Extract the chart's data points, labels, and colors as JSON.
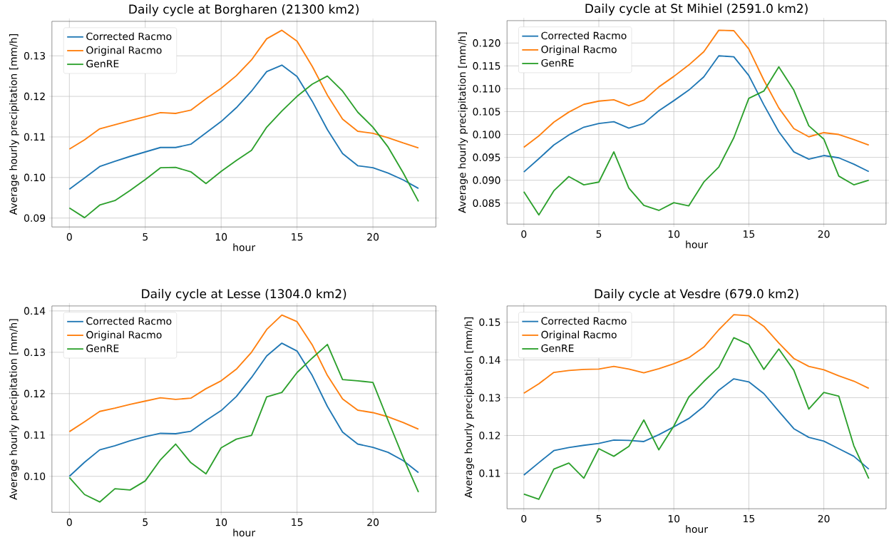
{
  "chart_data": [
    {
      "type": "line",
      "title": "Daily cycle at Borgharen (21300 km2)",
      "xlabel": "hour",
      "ylabel": "Average hourly precipitation [mm/h]",
      "x": [
        0,
        1,
        2,
        3,
        4,
        5,
        6,
        7,
        8,
        9,
        10,
        11,
        12,
        13,
        14,
        15,
        16,
        17,
        18,
        19,
        20,
        21,
        22,
        23
      ],
      "xlim": [
        -1.15,
        24.15
      ],
      "ylim": [
        0.0878,
        0.1385
      ],
      "xticks": [
        0,
        5,
        10,
        15,
        20
      ],
      "yticks": [
        0.09,
        {
          "value": 0.1,
          "label": "0.10"
        },
        0.11,
        0.12,
        0.13
      ],
      "grid": true,
      "legend": "top left",
      "marker": "none",
      "line_style": "solid",
      "series": [
        {
          "name": "Corrected Racmo",
          "color": "#1f77b4",
          "values": [
            0.0971,
            0.0999,
            0.1027,
            0.104,
            0.1052,
            0.1063,
            0.1074,
            0.1074,
            0.1082,
            0.111,
            0.1138,
            0.1172,
            0.1213,
            0.1261,
            0.1277,
            0.1249,
            0.1188,
            0.1118,
            0.1059,
            0.1029,
            0.1024,
            0.1011,
            0.0994,
            0.0973
          ]
        },
        {
          "name": "Original Racmo",
          "color": "#ff7f0e",
          "values": [
            0.107,
            0.1093,
            0.112,
            0.113,
            0.114,
            0.115,
            0.116,
            0.1158,
            0.1166,
            0.1194,
            0.122,
            0.1251,
            0.129,
            0.1342,
            0.1363,
            0.1336,
            0.1274,
            0.1203,
            0.1144,
            0.1114,
            0.1109,
            0.1098,
            0.1085,
            0.1073
          ]
        },
        {
          "name": "GenRE",
          "color": "#2ca02c",
          "values": [
            0.0925,
            0.0901,
            0.0932,
            0.0943,
            0.0968,
            0.0995,
            0.1024,
            0.1025,
            0.1014,
            0.0985,
            0.1015,
            0.1042,
            0.1067,
            0.1124,
            0.1164,
            0.12,
            0.123,
            0.125,
            0.1213,
            0.1161,
            0.1124,
            0.1075,
            0.1011,
            0.0941
          ]
        }
      ]
    },
    {
      "type": "line",
      "title": "Daily cycle at St Mihiel (2591.0 km2)",
      "xlabel": "hour",
      "ylabel": "Average hourly precipitation [mm/h]",
      "x": [
        0,
        1,
        2,
        3,
        4,
        5,
        6,
        7,
        8,
        9,
        10,
        11,
        12,
        13,
        14,
        15,
        16,
        17,
        18,
        19,
        20,
        21,
        22,
        23
      ],
      "xlim": [
        -1.12,
        24.15
      ],
      "ylim": [
        0.0804,
        0.1249
      ],
      "xticks": [
        0,
        5,
        10,
        15,
        20
      ],
      "yticks": [
        {
          "value": 0.085,
          "label": "0.085"
        },
        {
          "value": 0.09,
          "label": "0.090"
        },
        {
          "value": 0.095,
          "label": "0.095"
        },
        {
          "value": 0.1,
          "label": "0.100"
        },
        {
          "value": 0.105,
          "label": "0.105"
        },
        {
          "value": 0.11,
          "label": "0.110"
        },
        {
          "value": 0.115,
          "label": "0.115"
        },
        {
          "value": 0.12,
          "label": "0.120"
        }
      ],
      "grid": true,
      "legend": "top left",
      "marker": "none",
      "line_style": "solid",
      "series": [
        {
          "name": "Corrected Racmo",
          "color": "#1f77b4",
          "values": [
            0.0918,
            0.0947,
            0.0977,
            0.0999,
            0.1016,
            0.1024,
            0.1028,
            0.1014,
            0.1024,
            0.1052,
            0.1074,
            0.1097,
            0.1126,
            0.1172,
            0.117,
            0.1129,
            0.1065,
            0.1006,
            0.0962,
            0.0946,
            0.0954,
            0.0949,
            0.0935,
            0.0919
          ]
        },
        {
          "name": "Original Racmo",
          "color": "#ff7f0e",
          "values": [
            0.0972,
            0.0997,
            0.1027,
            0.1049,
            0.1066,
            0.1073,
            0.1076,
            0.1063,
            0.1075,
            0.1104,
            0.1127,
            0.1152,
            0.1181,
            0.1228,
            0.1227,
            0.1187,
            0.1119,
            0.1058,
            0.1013,
            0.0995,
            0.1004,
            0.1,
            0.0989,
            0.0977
          ]
        },
        {
          "name": "GenRE",
          "color": "#2ca02c",
          "values": [
            0.0875,
            0.0824,
            0.0877,
            0.0908,
            0.089,
            0.0896,
            0.0962,
            0.0883,
            0.0845,
            0.0834,
            0.0851,
            0.0844,
            0.0896,
            0.0929,
            0.0993,
            0.1079,
            0.1095,
            0.1148,
            0.1097,
            0.1019,
            0.099,
            0.0909,
            0.089,
            0.09
          ]
        }
      ]
    },
    {
      "type": "line",
      "title": "Daily cycle at Lesse (1304.0 km2)",
      "xlabel": "hour",
      "ylabel": "Average hourly precipitation [mm/h]",
      "x": [
        0,
        1,
        2,
        3,
        4,
        5,
        6,
        7,
        8,
        9,
        10,
        11,
        12,
        13,
        14,
        15,
        16,
        17,
        18,
        19,
        20,
        21,
        22,
        23
      ],
      "xlim": [
        -1.15,
        24.15
      ],
      "ylim": [
        0.0913,
        0.1412
      ],
      "xticks": [
        0,
        5,
        10,
        15,
        20
      ],
      "yticks": [
        {
          "value": 0.1,
          "label": "0.10"
        },
        0.11,
        0.12,
        0.13,
        0.14
      ],
      "grid": true,
      "legend": "top left",
      "marker": "none",
      "line_style": "solid",
      "series": [
        {
          "name": "Corrected Racmo",
          "color": "#1f77b4",
          "values": [
            0.1,
            0.1034,
            0.1064,
            0.1074,
            0.1086,
            0.1096,
            0.1104,
            0.1103,
            0.1109,
            0.1135,
            0.1159,
            0.1193,
            0.1239,
            0.1291,
            0.1322,
            0.1303,
            0.1244,
            0.1169,
            0.1107,
            0.1078,
            0.107,
            0.1058,
            0.1038,
            0.1009
          ]
        },
        {
          "name": "Original Racmo",
          "color": "#ff7f0e",
          "values": [
            0.1108,
            0.1132,
            0.1157,
            0.1165,
            0.1174,
            0.1182,
            0.119,
            0.1186,
            0.1189,
            0.1212,
            0.1231,
            0.1259,
            0.13,
            0.1355,
            0.139,
            0.1374,
            0.1318,
            0.1244,
            0.1187,
            0.116,
            0.1154,
            0.1144,
            0.113,
            0.1114
          ]
        },
        {
          "name": "GenRE",
          "color": "#2ca02c",
          "values": [
            0.0997,
            0.0956,
            0.0938,
            0.097,
            0.0967,
            0.0989,
            0.104,
            0.1078,
            0.1033,
            0.1006,
            0.1069,
            0.109,
            0.1099,
            0.1192,
            0.1203,
            0.1251,
            0.1286,
            0.1319,
            0.1234,
            0.1231,
            0.1227,
            0.1135,
            0.1045,
            0.0962
          ]
        }
      ]
    },
    {
      "type": "line",
      "title": "Daily cycle at Vesdre (679.0 km2)",
      "xlabel": "hour",
      "ylabel": "Average hourly precipitation [mm/h]",
      "x": [
        0,
        1,
        2,
        3,
        4,
        5,
        6,
        7,
        8,
        9,
        10,
        11,
        12,
        13,
        14,
        15,
        16,
        17,
        18,
        19,
        20,
        21,
        22,
        23
      ],
      "xlim": [
        -1.12,
        24.15
      ],
      "ylim": [
        0.1006,
        0.1543
      ],
      "xticks": [
        0,
        5,
        10,
        15,
        20
      ],
      "yticks": [
        0.11,
        0.12,
        0.13,
        0.14,
        0.15
      ],
      "grid": true,
      "legend": "top left",
      "marker": "none",
      "line_style": "solid",
      "series": [
        {
          "name": "Corrected Racmo",
          "color": "#1f77b4",
          "values": [
            0.1095,
            0.1128,
            0.116,
            0.1168,
            0.1174,
            0.1179,
            0.1188,
            0.1187,
            0.1184,
            0.1202,
            0.1223,
            0.1245,
            0.1277,
            0.132,
            0.135,
            0.1342,
            0.1311,
            0.1264,
            0.1218,
            0.1195,
            0.1185,
            0.1165,
            0.1145,
            0.1111
          ]
        },
        {
          "name": "Original Racmo",
          "color": "#ff7f0e",
          "values": [
            0.1312,
            0.1337,
            0.1367,
            0.1372,
            0.1375,
            0.1376,
            0.1383,
            0.1376,
            0.1366,
            0.1377,
            0.139,
            0.1406,
            0.1434,
            0.148,
            0.152,
            0.1517,
            0.1489,
            0.1445,
            0.1404,
            0.1383,
            0.1374,
            0.1358,
            0.1344,
            0.1325
          ]
        },
        {
          "name": "GenRE",
          "color": "#2ca02c",
          "values": [
            0.1045,
            0.1031,
            0.1111,
            0.1127,
            0.1087,
            0.1165,
            0.1145,
            0.1171,
            0.1241,
            0.1162,
            0.1225,
            0.1302,
            0.1343,
            0.1381,
            0.1459,
            0.1441,
            0.1375,
            0.1429,
            0.1373,
            0.127,
            0.1314,
            0.1304,
            0.1173,
            0.1086
          ]
        }
      ]
    }
  ]
}
